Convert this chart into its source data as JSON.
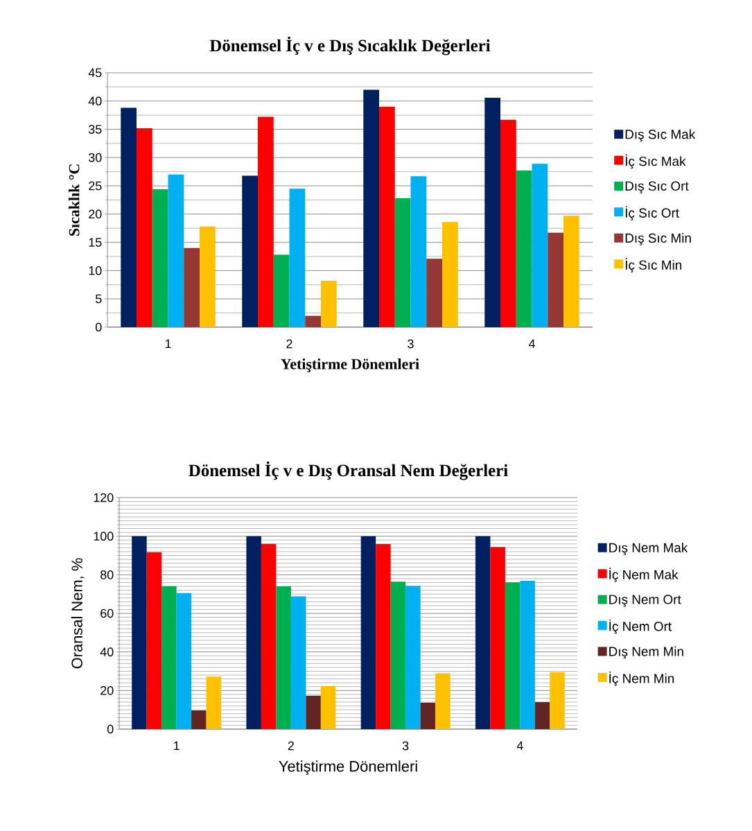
{
  "chart_data": [
    {
      "type": "bar",
      "title": "Dönemsel İç v e Dış Sıcaklık Değerleri",
      "xlabel": "Yetiştirme Dönemleri",
      "ylabel": "Sıcaklık °C",
      "categories": [
        "1",
        "2",
        "3",
        "4"
      ],
      "ylim": [
        0,
        45
      ],
      "yticks": [
        0,
        5,
        10,
        15,
        20,
        25,
        30,
        35,
        40,
        45
      ],
      "grid": "y",
      "legend": "right",
      "series": [
        {
          "name": "Dış Sıc Mak",
          "color": "#002060",
          "values": [
            38.8,
            26.8,
            42.0,
            40.6
          ]
        },
        {
          "name": "İç Sıc Mak",
          "color": "#ff0000",
          "values": [
            35.2,
            37.2,
            39.0,
            36.7
          ]
        },
        {
          "name": "Dış Sıc Ort",
          "color": "#00b050",
          "values": [
            24.4,
            12.8,
            22.8,
            27.7
          ]
        },
        {
          "name": "İç Sıc Ort",
          "color": "#00b0f0",
          "values": [
            27.0,
            24.5,
            26.7,
            28.9
          ]
        },
        {
          "name": "Dış Sıc Min",
          "color": "#953735",
          "values": [
            14.0,
            2.0,
            12.1,
            16.7
          ]
        },
        {
          "name": "İç Sıc Min",
          "color": "#ffc000",
          "values": [
            17.8,
            8.2,
            18.6,
            19.7
          ]
        }
      ]
    },
    {
      "type": "bar",
      "title": "Dönemsel İç v e Dış Oransal Nem Değerleri",
      "xlabel": "Yetiştirme Dönemleri",
      "ylabel": "Oransal Nem, %",
      "categories": [
        "1",
        "2",
        "3",
        "4"
      ],
      "ylim": [
        0,
        120
      ],
      "yticks": [
        0,
        20,
        40,
        60,
        80,
        100,
        120
      ],
      "grid": "y",
      "legend": "right",
      "series": [
        {
          "name": "Dış Nem Mak",
          "color": "#002060",
          "values": [
            100,
            100,
            100,
            100
          ]
        },
        {
          "name": "İç Nem Mak",
          "color": "#ff0000",
          "values": [
            91.7,
            96.0,
            95.9,
            94.4
          ]
        },
        {
          "name": "Dış Nem Ort",
          "color": "#00b050",
          "values": [
            74.1,
            74.0,
            76.4,
            76.1
          ]
        },
        {
          "name": "İç Nem Ort",
          "color": "#00b0f0",
          "values": [
            70.5,
            68.8,
            74.3,
            76.9
          ]
        },
        {
          "name": "Dış Nem Min",
          "color": "#632523",
          "values": [
            9.7,
            17.3,
            13.7,
            14.0
          ]
        },
        {
          "name": "İç Nem Min",
          "color": "#ffc000",
          "values": [
            27.2,
            22.4,
            28.9,
            29.5
          ]
        }
      ]
    }
  ]
}
